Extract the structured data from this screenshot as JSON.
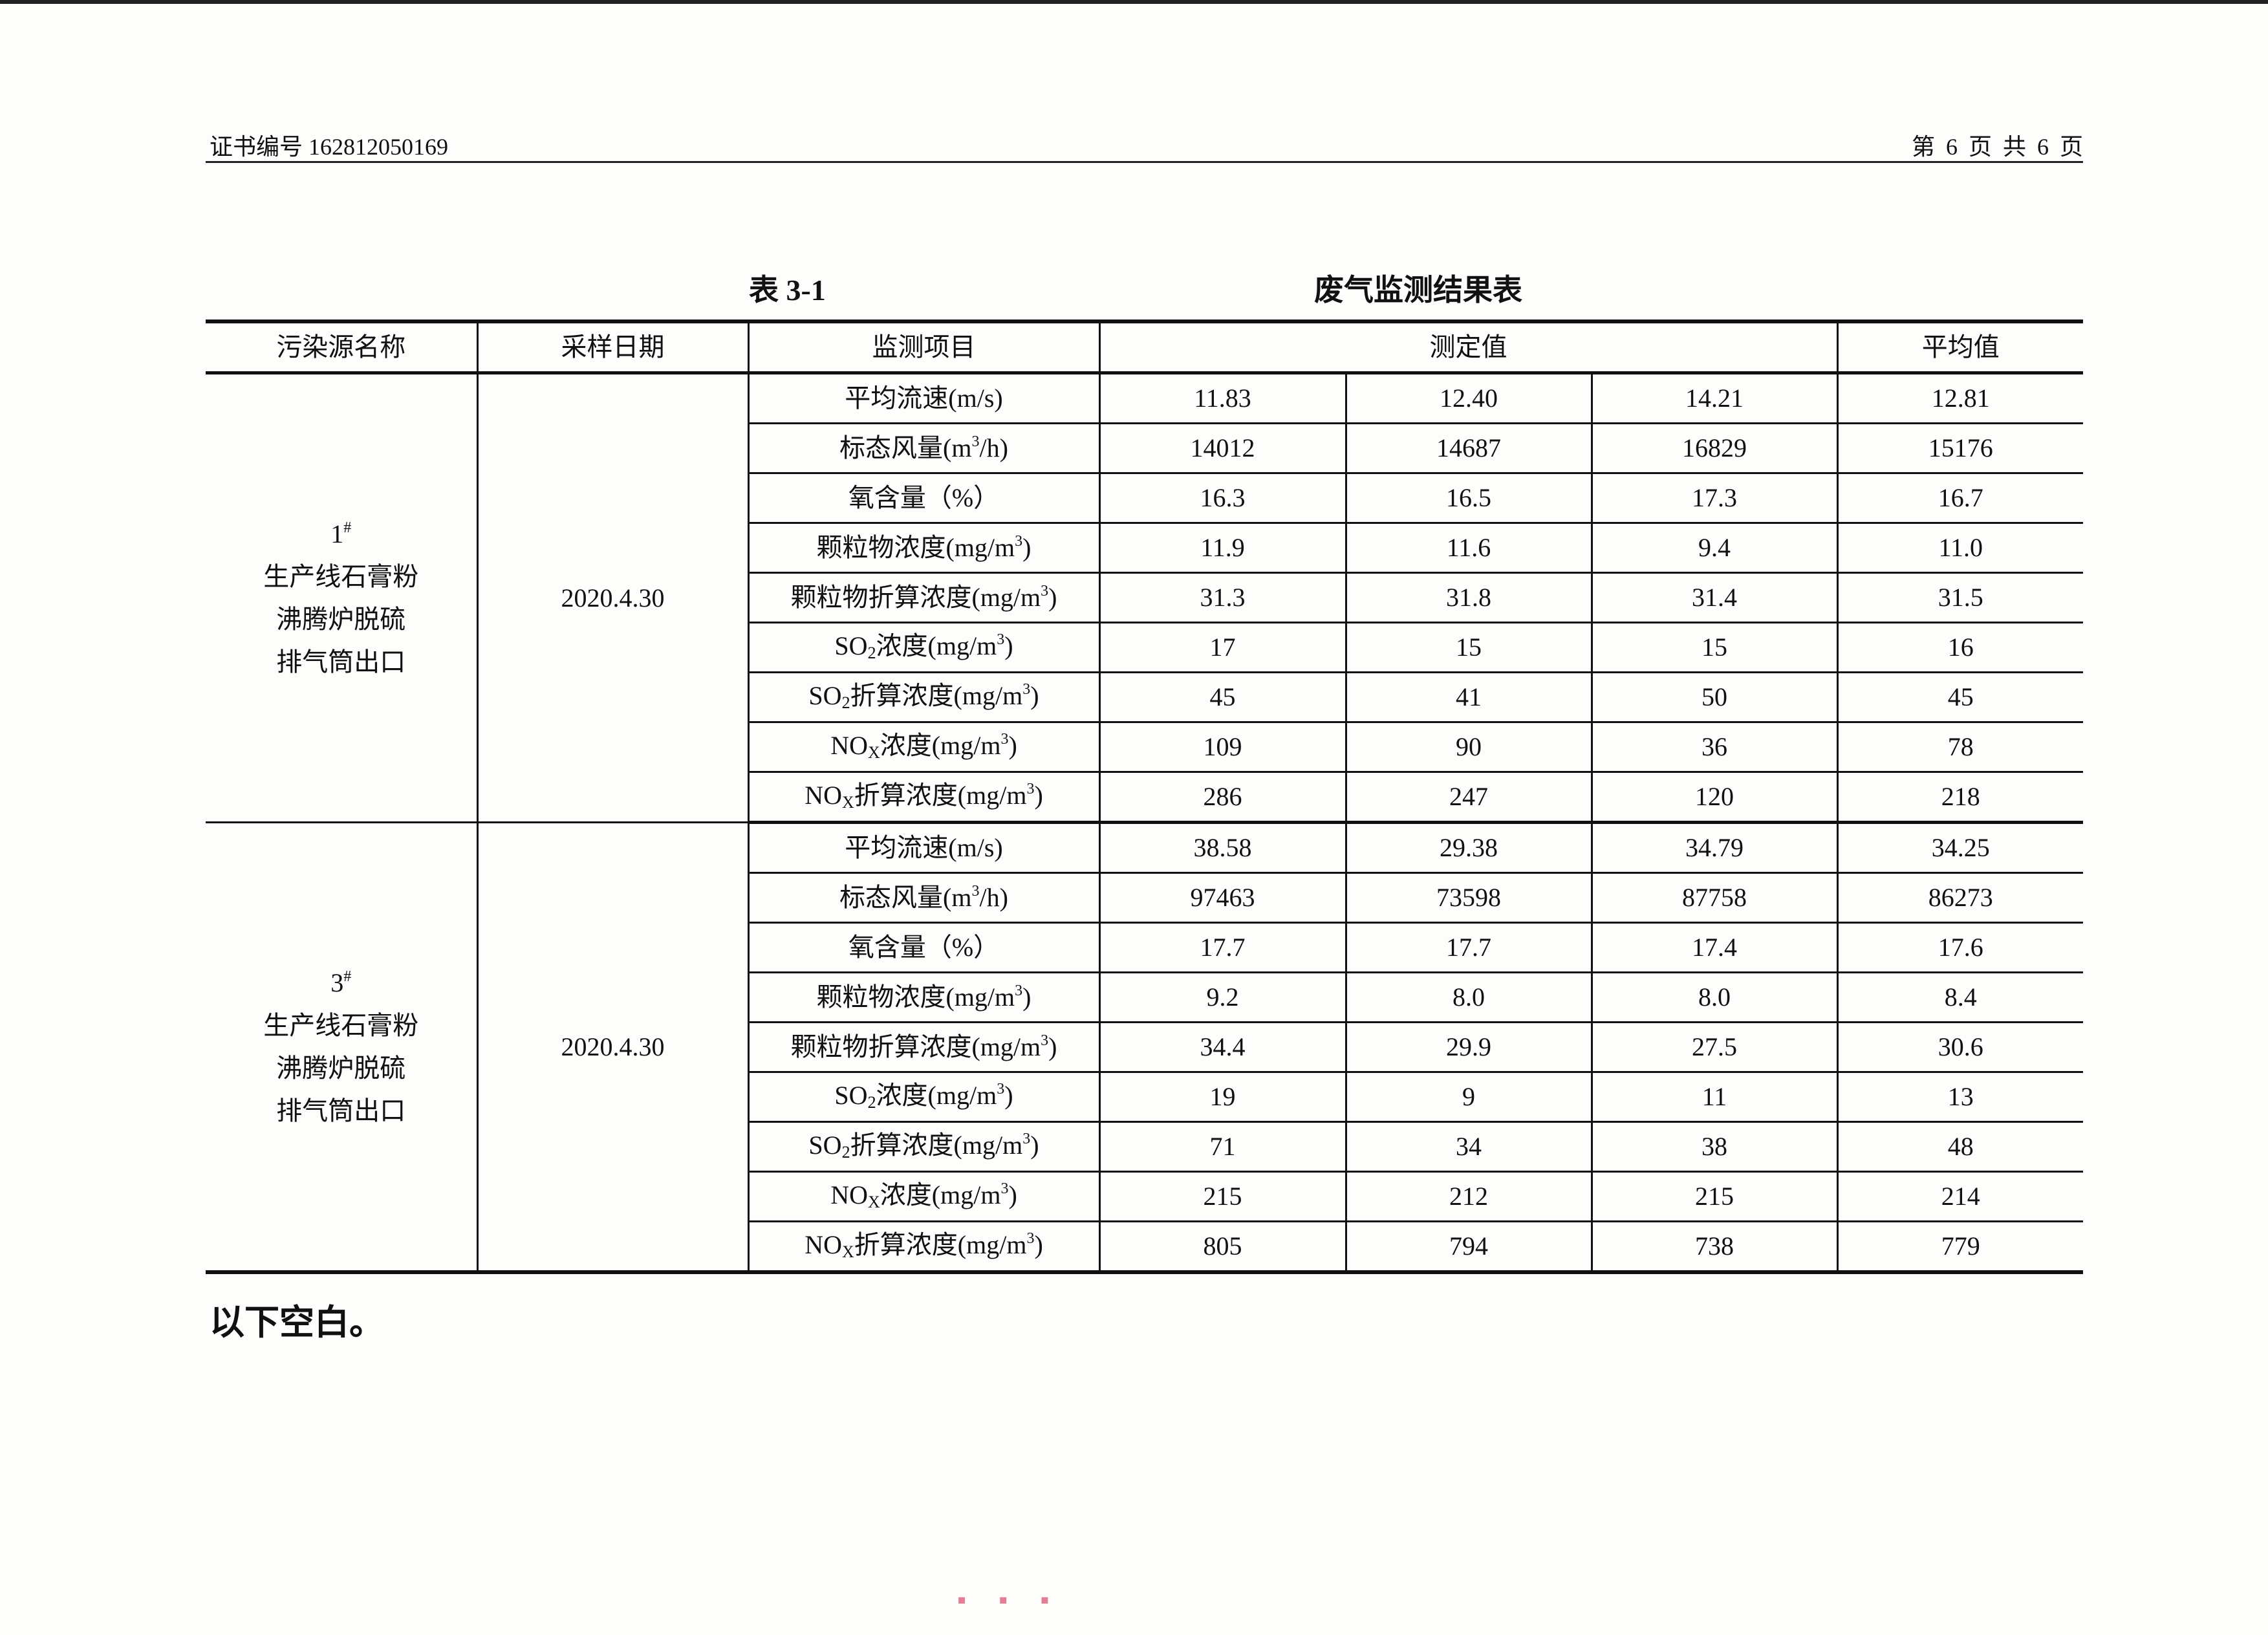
{
  "header": {
    "certificate": "证书编号 162812050169",
    "page": "第 6 页 共 6 页"
  },
  "table_no": "表 3-1",
  "table_title": "废气监测结果表",
  "columns": [
    "污染源名称",
    "采样日期",
    "监测项目",
    "测定值",
    "平均值"
  ],
  "groups": [
    {
      "source": {
        "no": "1",
        "mark": "#",
        "lines": [
          "生产线石膏粉",
          "沸腾炉脱硫",
          "排气筒出口"
        ]
      },
      "date": "2020.4.30",
      "rows": [
        {
          "item": [
            [
              "平均流速(m/s)"
            ]
          ],
          "values": [
            "11.83",
            "12.40",
            "14.21"
          ],
          "avg": "12.81"
        },
        {
          "item": [
            [
              "标态风量(m"
            ],
            [
              "3",
              "sup"
            ],
            [
              "/h)"
            ]
          ],
          "values": [
            "14012",
            "14687",
            "16829"
          ],
          "avg": "15176"
        },
        {
          "item": [
            [
              "氧含量（%）"
            ]
          ],
          "values": [
            "16.3",
            "16.5",
            "17.3"
          ],
          "avg": "16.7"
        },
        {
          "item": [
            [
              "颗粒物浓度(mg/m"
            ],
            [
              "3",
              "sup"
            ],
            [
              ")"
            ]
          ],
          "values": [
            "11.9",
            "11.6",
            "9.4"
          ],
          "avg": "11.0"
        },
        {
          "item": [
            [
              "颗粒物折算浓度(mg/m"
            ],
            [
              "3",
              "sup"
            ],
            [
              ")"
            ]
          ],
          "values": [
            "31.3",
            "31.8",
            "31.4"
          ],
          "avg": "31.5"
        },
        {
          "item": [
            [
              "SO"
            ],
            [
              "2",
              "sub"
            ],
            [
              "浓度(mg/m"
            ],
            [
              "3",
              "sup"
            ],
            [
              ")"
            ]
          ],
          "values": [
            "17",
            "15",
            "15"
          ],
          "avg": "16"
        },
        {
          "item": [
            [
              "SO"
            ],
            [
              "2",
              "sub"
            ],
            [
              "折算浓度(mg/m"
            ],
            [
              "3",
              "sup"
            ],
            [
              ")"
            ]
          ],
          "values": [
            "45",
            "41",
            "50"
          ],
          "avg": "45"
        },
        {
          "item": [
            [
              "NO"
            ],
            [
              "X",
              "sub"
            ],
            [
              "浓度(mg/m"
            ],
            [
              "3",
              "sup"
            ],
            [
              ")"
            ]
          ],
          "values": [
            "109",
            "90",
            "36"
          ],
          "avg": "78"
        },
        {
          "item": [
            [
              "NO"
            ],
            [
              "X",
              "sub"
            ],
            [
              "折算浓度(mg/m"
            ],
            [
              "3",
              "sup"
            ],
            [
              ")"
            ]
          ],
          "values": [
            "286",
            "247",
            "120"
          ],
          "avg": "218"
        }
      ]
    },
    {
      "source": {
        "no": "3",
        "mark": "#",
        "lines": [
          "生产线石膏粉",
          "沸腾炉脱硫",
          "排气筒出口"
        ]
      },
      "date": "2020.4.30",
      "rows": [
        {
          "item": [
            [
              "平均流速(m/s)"
            ]
          ],
          "values": [
            "38.58",
            "29.38",
            "34.79"
          ],
          "avg": "34.25"
        },
        {
          "item": [
            [
              "标态风量(m"
            ],
            [
              "3",
              "sup"
            ],
            [
              "/h)"
            ]
          ],
          "values": [
            "97463",
            "73598",
            "87758"
          ],
          "avg": "86273"
        },
        {
          "item": [
            [
              "氧含量（%）"
            ]
          ],
          "values": [
            "17.7",
            "17.7",
            "17.4"
          ],
          "avg": "17.6"
        },
        {
          "item": [
            [
              "颗粒物浓度(mg/m"
            ],
            [
              "3",
              "sup"
            ],
            [
              ")"
            ]
          ],
          "values": [
            "9.2",
            "8.0",
            "8.0"
          ],
          "avg": "8.4"
        },
        {
          "item": [
            [
              "颗粒物折算浓度(mg/m"
            ],
            [
              "3",
              "sup"
            ],
            [
              ")"
            ]
          ],
          "values": [
            "34.4",
            "29.9",
            "27.5"
          ],
          "avg": "30.6"
        },
        {
          "item": [
            [
              "SO"
            ],
            [
              "2",
              "sub"
            ],
            [
              "浓度(mg/m"
            ],
            [
              "3",
              "sup"
            ],
            [
              ")"
            ]
          ],
          "values": [
            "19",
            "9",
            "11"
          ],
          "avg": "13"
        },
        {
          "item": [
            [
              "SO"
            ],
            [
              "2",
              "sub"
            ],
            [
              "折算浓度(mg/m"
            ],
            [
              "3",
              "sup"
            ],
            [
              ")"
            ]
          ],
          "values": [
            "71",
            "34",
            "38"
          ],
          "avg": "48"
        },
        {
          "item": [
            [
              "NO"
            ],
            [
              "X",
              "sub"
            ],
            [
              "浓度(mg/m"
            ],
            [
              "3",
              "sup"
            ],
            [
              ")"
            ]
          ],
          "values": [
            "215",
            "212",
            "215"
          ],
          "avg": "214"
        },
        {
          "item": [
            [
              "NO"
            ],
            [
              "X",
              "sub"
            ],
            [
              "折算浓度(mg/m"
            ],
            [
              "3",
              "sup"
            ],
            [
              ")"
            ]
          ],
          "values": [
            "805",
            "794",
            "738"
          ],
          "avg": "779"
        }
      ]
    }
  ],
  "footer_note": "以下空白。"
}
